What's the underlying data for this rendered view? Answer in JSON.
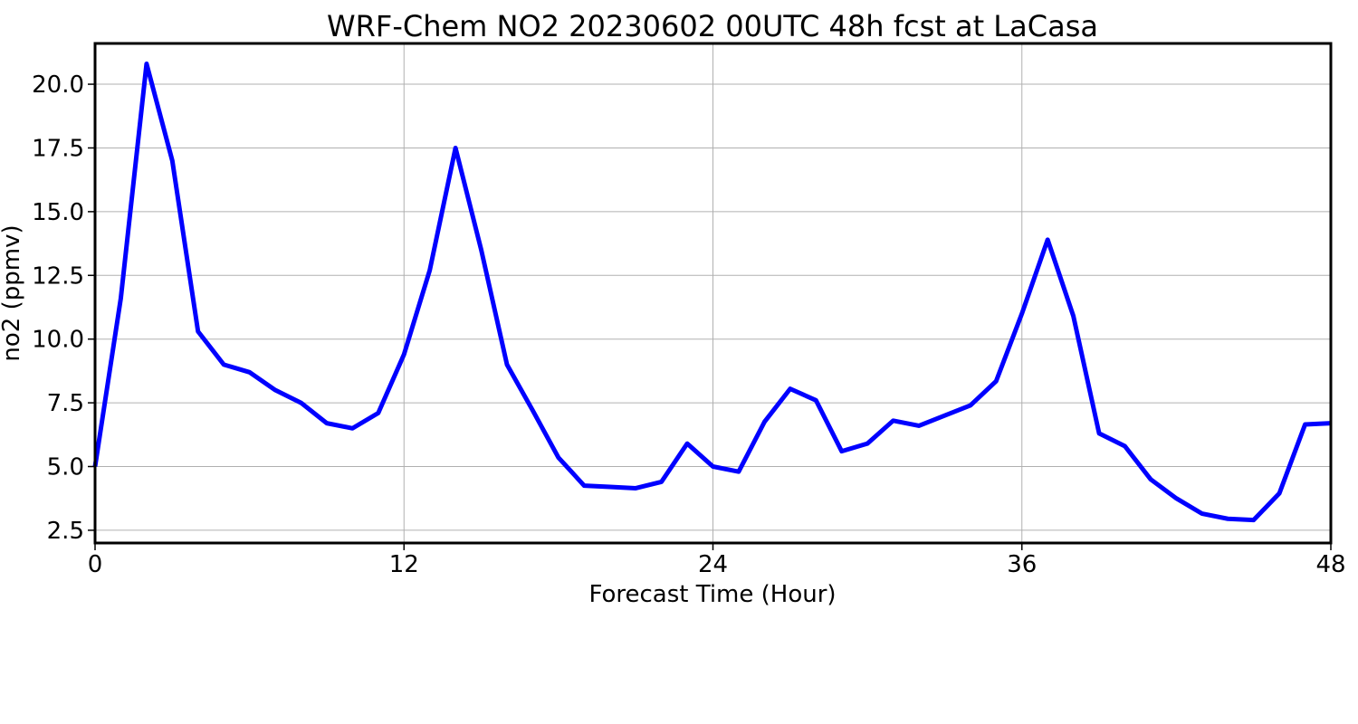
{
  "chart_data": {
    "type": "line",
    "title": "WRF-Chem NO2  20230602 00UTC 48h fcst at LaCasa",
    "xlabel": "Forecast Time (Hour)",
    "ylabel": "no2  (ppmv)",
    "xlim": [
      0,
      48
    ],
    "ylim": [
      2.0,
      21.6
    ],
    "xticks": [
      0,
      12,
      24,
      36,
      48
    ],
    "xtick_labels": [
      "0",
      "12",
      "24",
      "36",
      "48"
    ],
    "yticks": [
      2.5,
      5.0,
      7.5,
      10.0,
      12.5,
      15.0,
      17.5,
      20.0
    ],
    "ytick_labels": [
      "2.5",
      "5.0",
      "7.5",
      "10.0",
      "12.5",
      "15.0",
      "17.5",
      "20.0"
    ],
    "grid": true,
    "series": [
      {
        "color": "#0000ff",
        "x": [
          0,
          1,
          2,
          3,
          4,
          5,
          6,
          7,
          8,
          9,
          10,
          11,
          12,
          13,
          14,
          15,
          16,
          17,
          18,
          19,
          20,
          21,
          22,
          23,
          24,
          25,
          26,
          27,
          28,
          29,
          30,
          31,
          32,
          33,
          34,
          35,
          36,
          37,
          38,
          39,
          40,
          41,
          42,
          43,
          44,
          45,
          46,
          47,
          48
        ],
        "y": [
          5.0,
          11.6,
          20.8,
          17.0,
          10.3,
          9.0,
          8.7,
          8.0,
          7.5,
          6.7,
          6.5,
          7.1,
          9.4,
          12.7,
          17.5,
          13.5,
          9.0,
          7.2,
          5.35,
          4.25,
          4.2,
          4.15,
          4.4,
          5.9,
          5.0,
          4.8,
          6.75,
          8.05,
          7.6,
          5.6,
          5.9,
          6.8,
          6.6,
          7.0,
          7.4,
          8.35,
          11.0,
          13.9,
          10.9,
          6.3,
          5.8,
          4.5,
          3.75,
          3.15,
          2.95,
          2.9,
          3.95,
          6.65,
          6.7
        ]
      }
    ]
  }
}
